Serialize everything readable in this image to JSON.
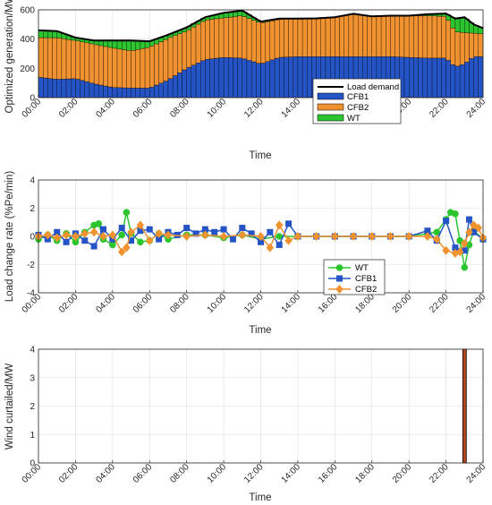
{
  "colors": {
    "cfb1": "#2454c6",
    "cfb2": "#f0922f",
    "wt": "#2cc52f",
    "load": "#000000",
    "curtail_edge": "#000000",
    "curtail_fill": "#b3471f",
    "grid": "#dddddd",
    "axis": "#262626"
  },
  "chart_data": [
    {
      "type": "area",
      "title": "",
      "xlabel": "Time",
      "ylabel": "Optimized generation/MW",
      "ylim": [
        0,
        600
      ],
      "yticks": [
        "0",
        "200",
        "400",
        "600"
      ],
      "xtick_labels": [
        "00:00",
        "02:00",
        "04:00",
        "06:00",
        "08:00",
        "10:00",
        "12:00",
        "14:00",
        "16:00",
        "18:00",
        "20:00",
        "22:00",
        "24:00"
      ],
      "x_hours": [
        0,
        1,
        2,
        3,
        4,
        5,
        6,
        7,
        8,
        9,
        10,
        11,
        12,
        13,
        14,
        15,
        16,
        17,
        18,
        19,
        20,
        21,
        22,
        22.5,
        23,
        23.5,
        24
      ],
      "legend": {
        "position": "bottom-right",
        "entries": [
          "Load demand",
          "CFB1",
          "CFB2",
          "WT"
        ]
      },
      "series": [
        {
          "name": "CFB1",
          "values": [
            140,
            125,
            130,
            95,
            70,
            65,
            65,
            120,
            200,
            260,
            275,
            270,
            230,
            275,
            280,
            280,
            280,
            280,
            280,
            280,
            275,
            270,
            270,
            210,
            230,
            280,
            280
          ]
        },
        {
          "name": "CFB2",
          "values": [
            270,
            285,
            260,
            270,
            270,
            255,
            280,
            285,
            255,
            270,
            270,
            290,
            280,
            260,
            260,
            262,
            270,
            293,
            275,
            280,
            285,
            290,
            285,
            240,
            215,
            160,
            155
          ]
        },
        {
          "name": "WT",
          "values": [
            50,
            45,
            20,
            25,
            50,
            70,
            40,
            25,
            25,
            20,
            35,
            35,
            10,
            5,
            0,
            0,
            0,
            0,
            0,
            0,
            0,
            10,
            20,
            90,
            105,
            60,
            40
          ]
        },
        {
          "name": "Load demand",
          "values": [
            460,
            455,
            410,
            390,
            390,
            390,
            385,
            430,
            480,
            550,
            580,
            595,
            520,
            540,
            540,
            542,
            550,
            573,
            555,
            560,
            560,
            570,
            575,
            540,
            550,
            500,
            475
          ]
        }
      ]
    },
    {
      "type": "line",
      "title": "",
      "xlabel": "Time",
      "ylabel": "Load change rate (%Pe/min)",
      "ylim": [
        -4,
        4
      ],
      "yticks": [
        "-4",
        "-2",
        "0",
        "2",
        "4"
      ],
      "xtick_labels": [
        "00:00",
        "02:00",
        "04:00",
        "06:00",
        "08:00",
        "10:00",
        "12:00",
        "14:00",
        "16:00",
        "18:00",
        "20:00",
        "22:00",
        "24:00"
      ],
      "legend": {
        "position": "bottom-center",
        "entries": [
          "WT",
          "CFB1",
          "CFB2"
        ]
      },
      "series": [
        {
          "name": "WT",
          "x": [
            0,
            0.5,
            1,
            1.5,
            2,
            2.5,
            3,
            3.25,
            3.5,
            4,
            4.5,
            4.75,
            5,
            5.5,
            6,
            6.5,
            7,
            8,
            9,
            10,
            11,
            12,
            13,
            14,
            15,
            16,
            17,
            18,
            19,
            20,
            21,
            21.5,
            22,
            22.25,
            22.5,
            22.75,
            23,
            23.25,
            23.5,
            24
          ],
          "values": [
            -0.2,
            0.1,
            -0.3,
            0.2,
            -0.4,
            0.3,
            0.8,
            0.9,
            -0.2,
            -0.6,
            0.1,
            1.7,
            0.2,
            -0.4,
            -0.3,
            0.2,
            -0.2,
            0.1,
            0.1,
            -0.1,
            0.1,
            -0.2,
            0,
            0,
            0,
            0,
            0,
            0,
            0,
            0,
            0.2,
            0.3,
            1.2,
            1.7,
            1.6,
            -0.3,
            -2.2,
            -0.6,
            0.4,
            -0.2
          ]
        },
        {
          "name": "CFB1",
          "x": [
            0,
            0.5,
            1,
            1.5,
            2,
            2.5,
            3,
            3.5,
            4,
            4.5,
            5,
            5.5,
            6,
            6.5,
            7,
            7.5,
            8,
            8.5,
            9,
            9.5,
            10,
            10.5,
            11,
            11.5,
            12,
            12.5,
            13,
            13.5,
            14,
            15,
            16,
            17,
            18,
            19,
            20,
            21,
            21.5,
            22,
            22.5,
            23,
            23.25,
            23.5,
            24
          ],
          "values": [
            0.1,
            -0.2,
            0.3,
            -0.4,
            0.2,
            -0.3,
            -0.7,
            0.5,
            -0.2,
            0.6,
            -0.3,
            0.4,
            0.5,
            -0.2,
            0.3,
            0.1,
            0.6,
            0.2,
            0.5,
            0.3,
            0.5,
            -0.2,
            0.6,
            0.2,
            -0.4,
            0.3,
            -0.6,
            0.9,
            0,
            0,
            0,
            0,
            0,
            0,
            0,
            0.4,
            -0.3,
            1.1,
            -0.8,
            -1.0,
            1.2,
            0.3,
            -0.2
          ]
        },
        {
          "name": "CFB2",
          "x": [
            0,
            0.5,
            1,
            1.5,
            2,
            2.5,
            3,
            3.5,
            4,
            4.5,
            4.75,
            5,
            5.5,
            6,
            6.5,
            7,
            8,
            9,
            10,
            11,
            12,
            12.5,
            13,
            13.5,
            14,
            15,
            16,
            17,
            18,
            19,
            20,
            21,
            21.5,
            22,
            22.5,
            22.75,
            23,
            23.25,
            23.5,
            23.75,
            24
          ],
          "values": [
            0,
            0.1,
            -0.1,
            0.1,
            0,
            0.2,
            0.3,
            0,
            0.1,
            -1.1,
            -0.8,
            0.3,
            0.8,
            -0.3,
            0.2,
            0.1,
            0,
            0.1,
            0,
            0.1,
            0,
            -0.8,
            0.8,
            -0.3,
            0,
            0,
            0,
            0,
            0,
            0,
            0,
            0,
            -0.2,
            -1.0,
            -1.2,
            -1.1,
            -0.5,
            0.3,
            0.8,
            0.6,
            -0.1
          ]
        }
      ]
    },
    {
      "type": "bar",
      "title": "",
      "xlabel": "Time",
      "ylabel": "Wind curtailed/MW",
      "ylim": [
        0,
        4
      ],
      "yticks": [
        "0",
        "1",
        "2",
        "3",
        "4"
      ],
      "xtick_labels": [
        "00:00",
        "02:00",
        "04:00",
        "06:00",
        "08:00",
        "10:00",
        "12:00",
        "14:00",
        "16:00",
        "18:00",
        "20:00",
        "22:00",
        "24:00"
      ],
      "x_hours": [
        23.0
      ],
      "values": [
        4
      ]
    }
  ]
}
